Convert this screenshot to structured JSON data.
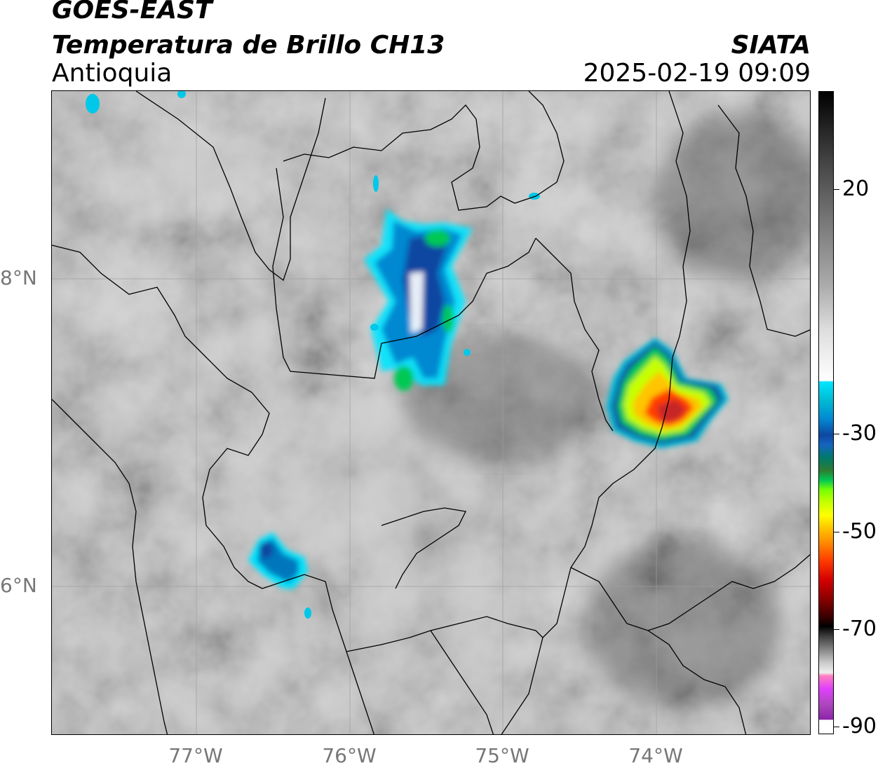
{
  "header": {
    "line1": "GOES-EAST",
    "line2": "Temperatura de Brillo CH13",
    "line3": "Antioquia",
    "organization": "SIATA",
    "datetime": "2025-02-19 09:09"
  },
  "map": {
    "lat_labels": [
      "8°N",
      "6°N"
    ],
    "lon_labels": [
      "77°W",
      "76°W",
      "75°W",
      "74°W"
    ],
    "colors": {
      "background_gray": "#8a8a8a",
      "cold_blue": "#0d47a1",
      "cyan": "#00e5ff",
      "green": "#00c853",
      "yellow": "#ffff00",
      "red": "#d50000",
      "border_lines": "#000000",
      "grid_lines": "#9e9e9e"
    }
  },
  "colorbar": {
    "tick_labels": [
      "20",
      "-30",
      "-50",
      "-70",
      "-90"
    ]
  }
}
